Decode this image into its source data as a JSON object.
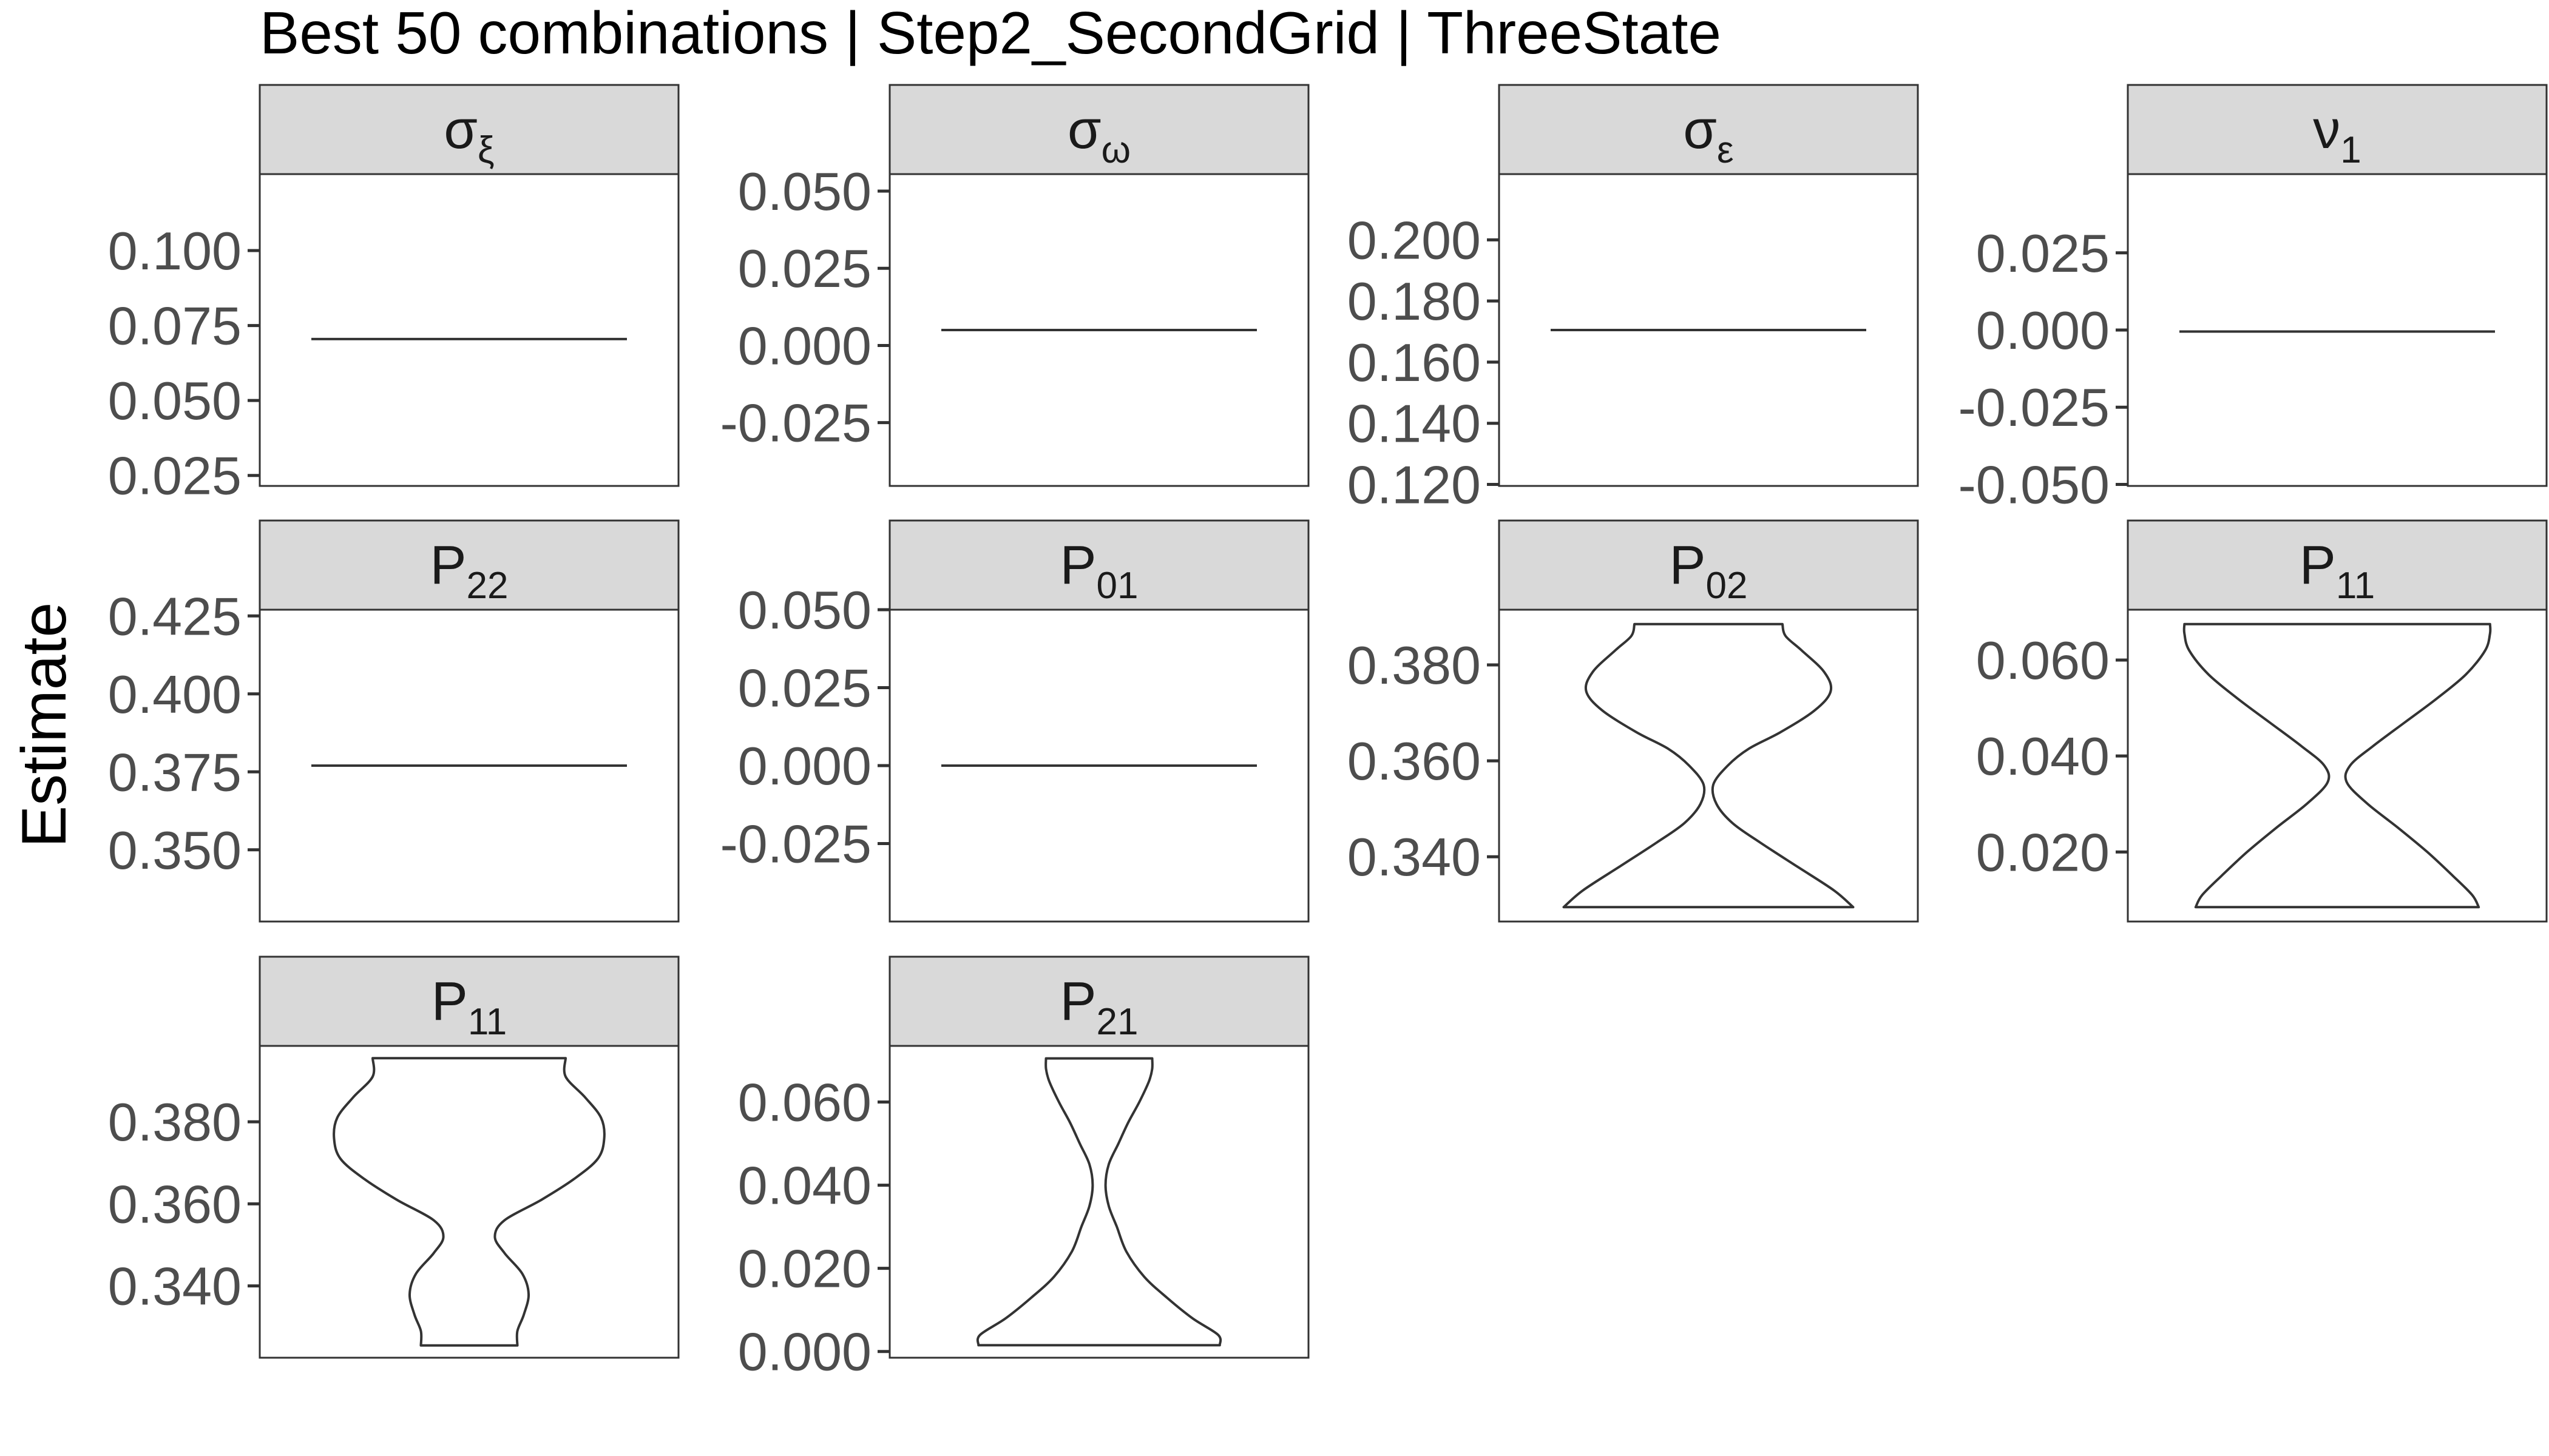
{
  "chart_data": {
    "type": "violin",
    "title": "Best 50 combinations | Step2_SecondGrid | ThreeState",
    "ylabel": "Estimate",
    "xlabel": "",
    "grid": false,
    "legend": "none",
    "colors": {
      "strip_bg": "#d9d9d9",
      "panel_border": "#333333",
      "line": "#333333",
      "tick_text": "#4d4d4d",
      "background": "#ffffff"
    },
    "panels": [
      {
        "symbol": "σ",
        "sub": "ξ",
        "ticks": [
          "0.100",
          "0.075",
          "0.050",
          "0.025"
        ],
        "tick_values": [
          0.1,
          0.075,
          0.05,
          0.025
        ],
        "ylim": [
          0.0215,
          0.1255
        ],
        "values": [
          0.0705
        ],
        "distribution": "constant"
      },
      {
        "symbol": "σ",
        "sub": "ω",
        "ticks": [
          "0.050",
          "0.025",
          "0.000",
          "-0.025"
        ],
        "tick_values": [
          0.05,
          0.025,
          0.0,
          -0.025
        ],
        "ylim": [
          -0.0455,
          0.0555
        ],
        "values": [
          0.005
        ],
        "distribution": "constant"
      },
      {
        "symbol": "σ",
        "sub": "ε",
        "ticks": [
          "0.200",
          "0.180",
          "0.160",
          "0.140",
          "0.120"
        ],
        "tick_values": [
          0.2,
          0.18,
          0.16,
          0.14,
          0.12
        ],
        "ylim": [
          0.1195,
          0.2215
        ],
        "values": [
          0.1705
        ],
        "distribution": "constant"
      },
      {
        "symbol": "ν",
        "sub": "1",
        "ticks": [
          "0.025",
          "0.000",
          "-0.025",
          "-0.050"
        ],
        "tick_values": [
          0.025,
          0.0,
          -0.025,
          -0.05
        ],
        "ylim": [
          -0.0505,
          0.0505
        ],
        "values": [
          -0.0005
        ],
        "distribution": "constant"
      },
      {
        "symbol": "P",
        "sub": "22",
        "ticks": [
          "0.425",
          "0.400",
          "0.375",
          "0.350"
        ],
        "tick_values": [
          0.425,
          0.4,
          0.375,
          0.35
        ],
        "ylim": [
          0.327,
          0.427
        ],
        "values": [
          0.377
        ],
        "distribution": "constant"
      },
      {
        "symbol": "P",
        "sub": "01",
        "ticks": [
          "0.050",
          "0.025",
          "0.000",
          "-0.025"
        ],
        "tick_values": [
          0.05,
          0.025,
          0.0,
          -0.025
        ],
        "ylim": [
          -0.05,
          0.05
        ],
        "values": [
          0.0
        ],
        "distribution": "constant"
      },
      {
        "symbol": "P",
        "sub": "02",
        "ticks": [
          "0.380",
          "0.360",
          "0.340"
        ],
        "tick_values": [
          0.38,
          0.36,
          0.34
        ],
        "ylim": [
          0.3265,
          0.3915
        ],
        "range": [
          0.3295,
          0.3885
        ],
        "distribution": "violin",
        "density": [
          [
            0.3295,
            0.9
          ],
          [
            0.333,
            0.78
          ],
          [
            0.338,
            0.55
          ],
          [
            0.343,
            0.32
          ],
          [
            0.347,
            0.15
          ],
          [
            0.351,
            0.05
          ],
          [
            0.355,
            0.03
          ],
          [
            0.359,
            0.12
          ],
          [
            0.3625,
            0.25
          ],
          [
            0.366,
            0.45
          ],
          [
            0.3705,
            0.66
          ],
          [
            0.3745,
            0.76
          ],
          [
            0.3785,
            0.72
          ],
          [
            0.383,
            0.58
          ],
          [
            0.386,
            0.48
          ],
          [
            0.3885,
            0.46
          ]
        ]
      },
      {
        "symbol": "P",
        "sub": "11",
        "ticks": [
          "0.060",
          "0.040",
          "0.020"
        ],
        "tick_values": [
          0.06,
          0.04,
          0.02
        ],
        "ylim": [
          0.0055,
          0.0705
        ],
        "range": [
          0.0085,
          0.0675
        ],
        "distribution": "violin",
        "density": [
          [
            0.0085,
            0.88
          ],
          [
            0.011,
            0.84
          ],
          [
            0.015,
            0.72
          ],
          [
            0.02,
            0.56
          ],
          [
            0.025,
            0.38
          ],
          [
            0.03,
            0.19
          ],
          [
            0.0345,
            0.06
          ],
          [
            0.038,
            0.08
          ],
          [
            0.042,
            0.22
          ],
          [
            0.047,
            0.42
          ],
          [
            0.052,
            0.62
          ],
          [
            0.057,
            0.8
          ],
          [
            0.062,
            0.92
          ],
          [
            0.0655,
            0.95
          ],
          [
            0.0675,
            0.95
          ]
        ]
      },
      {
        "symbol": "P",
        "sub": "11",
        "ticks": [
          "0.380",
          "0.360",
          "0.340"
        ],
        "tick_values": [
          0.38,
          0.36,
          0.34
        ],
        "ylim": [
          0.3225,
          0.3985
        ],
        "range": [
          0.3255,
          0.3955
        ],
        "distribution": "violin",
        "density": [
          [
            0.3255,
            0.3
          ],
          [
            0.329,
            0.3
          ],
          [
            0.333,
            0.34
          ],
          [
            0.338,
            0.37
          ],
          [
            0.343,
            0.33
          ],
          [
            0.348,
            0.22
          ],
          [
            0.352,
            0.16
          ],
          [
            0.356,
            0.22
          ],
          [
            0.361,
            0.45
          ],
          [
            0.366,
            0.65
          ],
          [
            0.371,
            0.8
          ],
          [
            0.376,
            0.84
          ],
          [
            0.381,
            0.82
          ],
          [
            0.386,
            0.72
          ],
          [
            0.391,
            0.6
          ],
          [
            0.3955,
            0.6
          ]
        ]
      },
      {
        "symbol": "P",
        "sub": "21",
        "ticks": [
          "0.060",
          "0.040",
          "0.020",
          "0.000"
        ],
        "tick_values": [
          0.06,
          0.04,
          0.02,
          0.0
        ],
        "ylim": [
          -0.0015,
          0.0735
        ],
        "range": [
          0.0015,
          0.0705
        ],
        "distribution": "violin",
        "density": [
          [
            0.0015,
            0.75
          ],
          [
            0.004,
            0.74
          ],
          [
            0.008,
            0.58
          ],
          [
            0.013,
            0.42
          ],
          [
            0.018,
            0.28
          ],
          [
            0.024,
            0.17
          ],
          [
            0.03,
            0.11
          ],
          [
            0.035,
            0.06
          ],
          [
            0.04,
            0.04
          ],
          [
            0.045,
            0.06
          ],
          [
            0.05,
            0.12
          ],
          [
            0.055,
            0.18
          ],
          [
            0.06,
            0.25
          ],
          [
            0.065,
            0.31
          ],
          [
            0.068,
            0.33
          ],
          [
            0.0705,
            0.33
          ]
        ]
      }
    ]
  }
}
